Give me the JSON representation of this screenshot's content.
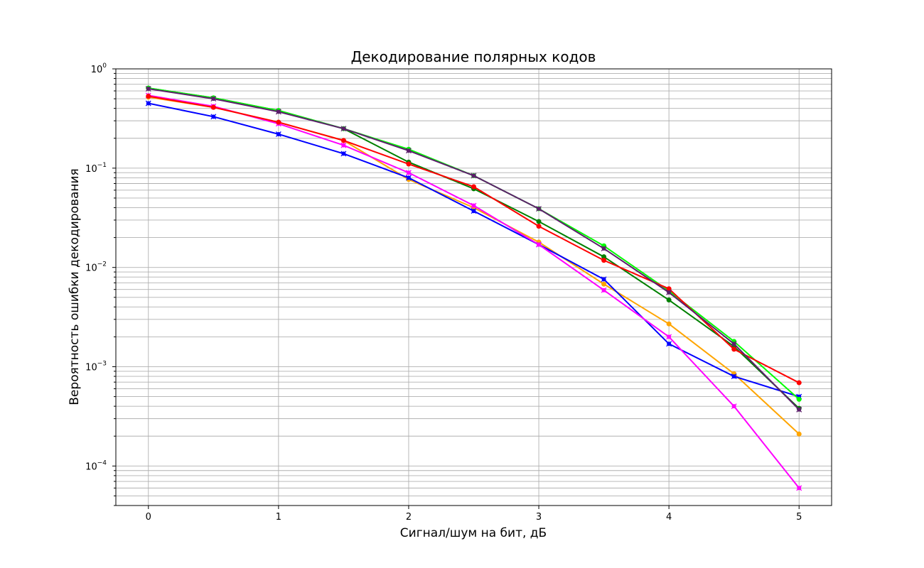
{
  "chart_data": {
    "type": "line",
    "title": "Декодирование полярных кодов",
    "xlabel": "Сигнал/шум на бит, дБ",
    "ylabel": "Вероятность ошибки декодирования",
    "yscale": "log",
    "xlim": [
      -0.25,
      5.25
    ],
    "ylim": [
      4e-05,
      1.0
    ],
    "grid": true,
    "x": [
      0,
      0.5,
      1,
      1.5,
      2,
      2.5,
      3,
      3.5,
      4,
      4.5,
      5
    ],
    "xticks": [
      "0",
      "1",
      "2",
      "3",
      "4",
      "5"
    ],
    "yticks": [
      {
        "base": "10",
        "exp": "0"
      },
      {
        "base": "10",
        "exp": "−1"
      },
      {
        "base": "10",
        "exp": "−2"
      },
      {
        "base": "10",
        "exp": "−3"
      },
      {
        "base": "10",
        "exp": "−4"
      }
    ],
    "series": [
      {
        "color": "#ffa500",
        "marker": "circle",
        "values": [
          0.52,
          0.41,
          0.29,
          0.19,
          0.077,
          0.04,
          0.018,
          0.0068,
          0.0027,
          0.00085,
          0.00021
        ]
      },
      {
        "color": "#0000ff",
        "marker": "cross",
        "values": [
          0.45,
          0.33,
          0.22,
          0.14,
          0.08,
          0.037,
          0.017,
          0.0076,
          0.0017,
          0.0008,
          0.0005
        ]
      },
      {
        "color": "#ff00ff",
        "marker": "cross",
        "values": [
          0.54,
          0.42,
          0.28,
          0.17,
          0.09,
          0.042,
          0.017,
          0.0059,
          0.002,
          0.0004,
          6e-05
        ]
      },
      {
        "color": "#008000",
        "marker": "circle",
        "values": [
          0.64,
          0.51,
          0.38,
          0.25,
          0.115,
          0.062,
          0.029,
          0.0128,
          0.0047,
          0.0016,
          0.00038
        ]
      },
      {
        "color": "#00ff00",
        "marker": "circle",
        "values": [
          0.64,
          0.51,
          0.38,
          0.25,
          0.155,
          0.084,
          0.039,
          0.0165,
          0.0058,
          0.0018,
          0.00047
        ]
      },
      {
        "color": "#ff0000",
        "marker": "circle",
        "values": [
          0.53,
          0.41,
          0.29,
          0.19,
          0.11,
          0.065,
          0.026,
          0.0118,
          0.0061,
          0.0015,
          0.00069
        ]
      },
      {
        "color": "#5c1f6b",
        "marker": "cross",
        "values": [
          0.63,
          0.5,
          0.37,
          0.25,
          0.15,
          0.084,
          0.039,
          0.0155,
          0.0056,
          0.0017,
          0.00037
        ]
      }
    ]
  }
}
